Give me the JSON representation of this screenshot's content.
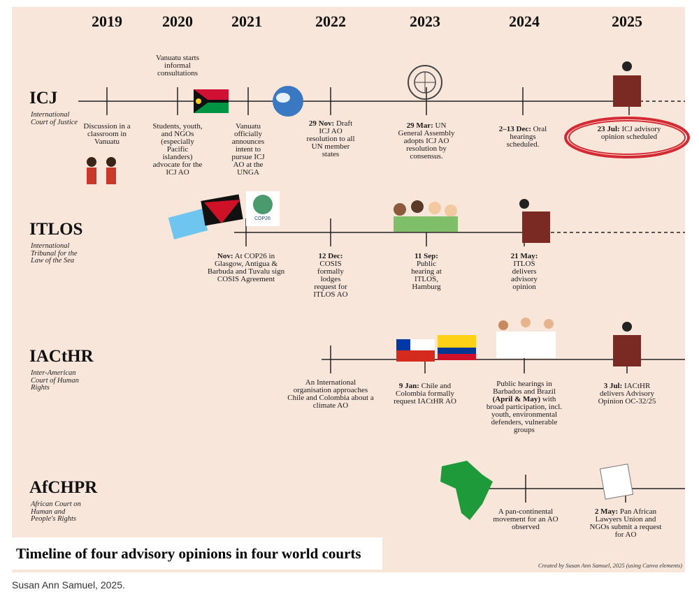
{
  "years": [
    "2019",
    "2020",
    "2021",
    "2022",
    "2023",
    "2024",
    "2025"
  ],
  "courts": [
    {
      "abbr": "ICJ",
      "name": "International Court of Justice",
      "events": [
        {
          "text": "Discussion in a classroom in Vanuatu"
        },
        {
          "text": "Vanuatu starts informal consultations"
        },
        {
          "text": "Students, youth, and NGOs (especially Pacific islanders) advocate for the ICJ AO"
        },
        {
          "text": "Vanuatu officially announces intent to pursue ICJ AO at the UNGA"
        },
        {
          "date": "29 Nov:",
          "text": "Draft ICJ AO resolution to all UN member states"
        },
        {
          "date": "29 Mar:",
          "text": "UN General Assembly adopts ICJ AO resolution by consensus."
        },
        {
          "date": "2–13 Dec:",
          "text": "Oral hearings scheduled."
        },
        {
          "date": "23 Jul:",
          "text": "ICJ advisory opinion scheduled"
        }
      ]
    },
    {
      "abbr": "ITLOS",
      "name": "International Tribunal for the Law of the Sea",
      "events": [
        {
          "date": "Nov:",
          "text": "At COP26 in Glasgow, Antigua & Barbuda and Tuvalu sign COSIS Agreement"
        },
        {
          "date": "12 Dec:",
          "text": "COSIS formally lodges request for ITLOS AO"
        },
        {
          "date": "11 Sep:",
          "text": "Public hearing at ITLOS, Hamburg"
        },
        {
          "date": "21 May:",
          "text": "ITLOS delivers advisory opinion"
        }
      ]
    },
    {
      "abbr": "IACtHR",
      "name": "Inter-American Court of Human Rights",
      "events": [
        {
          "text": "An International organisation approaches Chile and Colombia about a climate AO"
        },
        {
          "date": "9 Jan:",
          "text": "Chile and Colombia formally request IACtHR AO"
        },
        {
          "text": "Public hearings in Barbados and Brazil",
          "date": "(April & May)",
          "text_after": "with broad participation, incl. youth, environmental defenders, vulnerable groups"
        },
        {
          "date": "3 Jul:",
          "text": "IACtHR delivers Advisory Opinion OC-32/25"
        }
      ]
    },
    {
      "abbr": "AfCHPR",
      "name": "African Court on Human and People's Rights",
      "events": [
        {
          "text": "A pan-continental movement for an AO observed"
        },
        {
          "date": "2 May:",
          "text": "Pan African Lawyers Union and NGOs submit a request for AO"
        }
      ]
    }
  ],
  "cop_logo": "COP26",
  "title": "Timeline of four advisory opinions in four world courts",
  "credit": "Created by Susan Ann Samuel, 2025 (using Canva elements)",
  "caption": "Susan Ann Samuel, 2025."
}
